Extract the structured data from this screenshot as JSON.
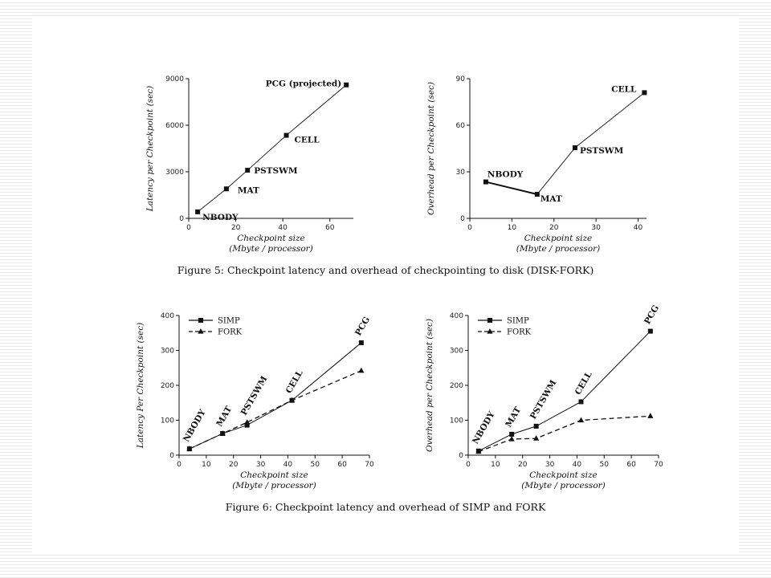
{
  "figures": {
    "fig5_caption": "Figure 5: Checkpoint latency and overhead of checkpointing to disk (DISK-FORK)",
    "fig6_caption": "Figure 6: Checkpoint latency and overhead of SIMP and FORK"
  },
  "chart_data": [
    {
      "id": "fig5-latency",
      "type": "line",
      "title": "",
      "xlabel": "Checkpoint size",
      "xlabel2": "(Mbyte / processor)",
      "ylabel": "Latency per Checkpoint (sec)",
      "xlim": [
        0,
        70
      ],
      "ylim": [
        0,
        9000
      ],
      "xticks": [
        0,
        20,
        40,
        60
      ],
      "yticks": [
        0,
        3000,
        6000,
        9000
      ],
      "grid": false,
      "series": [
        {
          "style": "solid-thin",
          "marker": "square",
          "x": [
            3.8,
            16,
            25,
            41.5,
            67
          ],
          "y": [
            420,
            1900,
            3100,
            5350,
            8600
          ],
          "labels": [
            "NBODY",
            "MAT",
            "PSTSWM",
            "CELL",
            "PCG (projected)"
          ]
        }
      ]
    },
    {
      "id": "fig5-overhead",
      "type": "line",
      "title": "",
      "xlabel": "Checkpoint size",
      "xlabel2": "(Mbyte / processor)",
      "ylabel": "Overhead per Checkpoint (sec)",
      "xlim": [
        0,
        42
      ],
      "ylim": [
        0,
        90
      ],
      "xticks": [
        0,
        10,
        20,
        30,
        40
      ],
      "yticks": [
        0,
        30,
        60,
        90
      ],
      "grid": false,
      "series": [
        {
          "style": "mixed",
          "marker": "square",
          "x": [
            3.8,
            16,
            25,
            41.5
          ],
          "y": [
            23.5,
            15.5,
            45.5,
            81
          ],
          "labels": [
            "NBODY",
            "MAT",
            "PSTSWM",
            "CELL"
          ]
        }
      ]
    },
    {
      "id": "fig6-latency",
      "type": "line",
      "title": "",
      "xlabel": "Checkpoint size",
      "xlabel2": "(Mbyte / processor)",
      "ylabel": "Latency Per Checkpoint (sec)",
      "xlim": [
        0,
        70
      ],
      "ylim": [
        0,
        400
      ],
      "xticks": [
        0,
        10,
        20,
        30,
        40,
        50,
        60,
        70
      ],
      "yticks": [
        0,
        100,
        200,
        300,
        400
      ],
      "grid": false,
      "legend": "top-left",
      "point_labels": [
        "NBODY",
        "MAT",
        "PSTSWM",
        "CELL",
        "PCG"
      ],
      "series": [
        {
          "name": "SIMP",
          "style": "solid",
          "marker": "square",
          "x": [
            3.8,
            16,
            25,
            41.5,
            67
          ],
          "y": [
            18,
            62,
            86,
            157,
            322
          ]
        },
        {
          "name": "FORK",
          "style": "dashed",
          "marker": "triangle",
          "x": [
            3.8,
            16,
            25,
            41.5,
            67
          ],
          "y": [
            18,
            62,
            94,
            157,
            242
          ]
        }
      ]
    },
    {
      "id": "fig6-overhead",
      "type": "line",
      "title": "",
      "xlabel": "Checkpoint size",
      "xlabel2": "(Mbyte / processor)",
      "ylabel": "Overhead per Checkpoint (sec)",
      "xlim": [
        0,
        70
      ],
      "ylim": [
        0,
        400
      ],
      "xticks": [
        0,
        10,
        20,
        30,
        40,
        50,
        60,
        70
      ],
      "yticks": [
        0,
        100,
        200,
        300,
        400
      ],
      "grid": false,
      "legend": "top-left",
      "point_labels": [
        "NBODY",
        "MAT",
        "PSTSWM",
        "CELL",
        "PCG"
      ],
      "series": [
        {
          "name": "SIMP",
          "style": "solid",
          "marker": "square",
          "x": [
            3.8,
            16,
            25,
            41.5,
            67
          ],
          "y": [
            12,
            60,
            83,
            153,
            355
          ]
        },
        {
          "name": "FORK",
          "style": "dashed",
          "marker": "triangle",
          "x": [
            3.8,
            16,
            25,
            41.5,
            67
          ],
          "y": [
            10,
            46,
            48,
            100,
            112
          ]
        }
      ]
    }
  ]
}
